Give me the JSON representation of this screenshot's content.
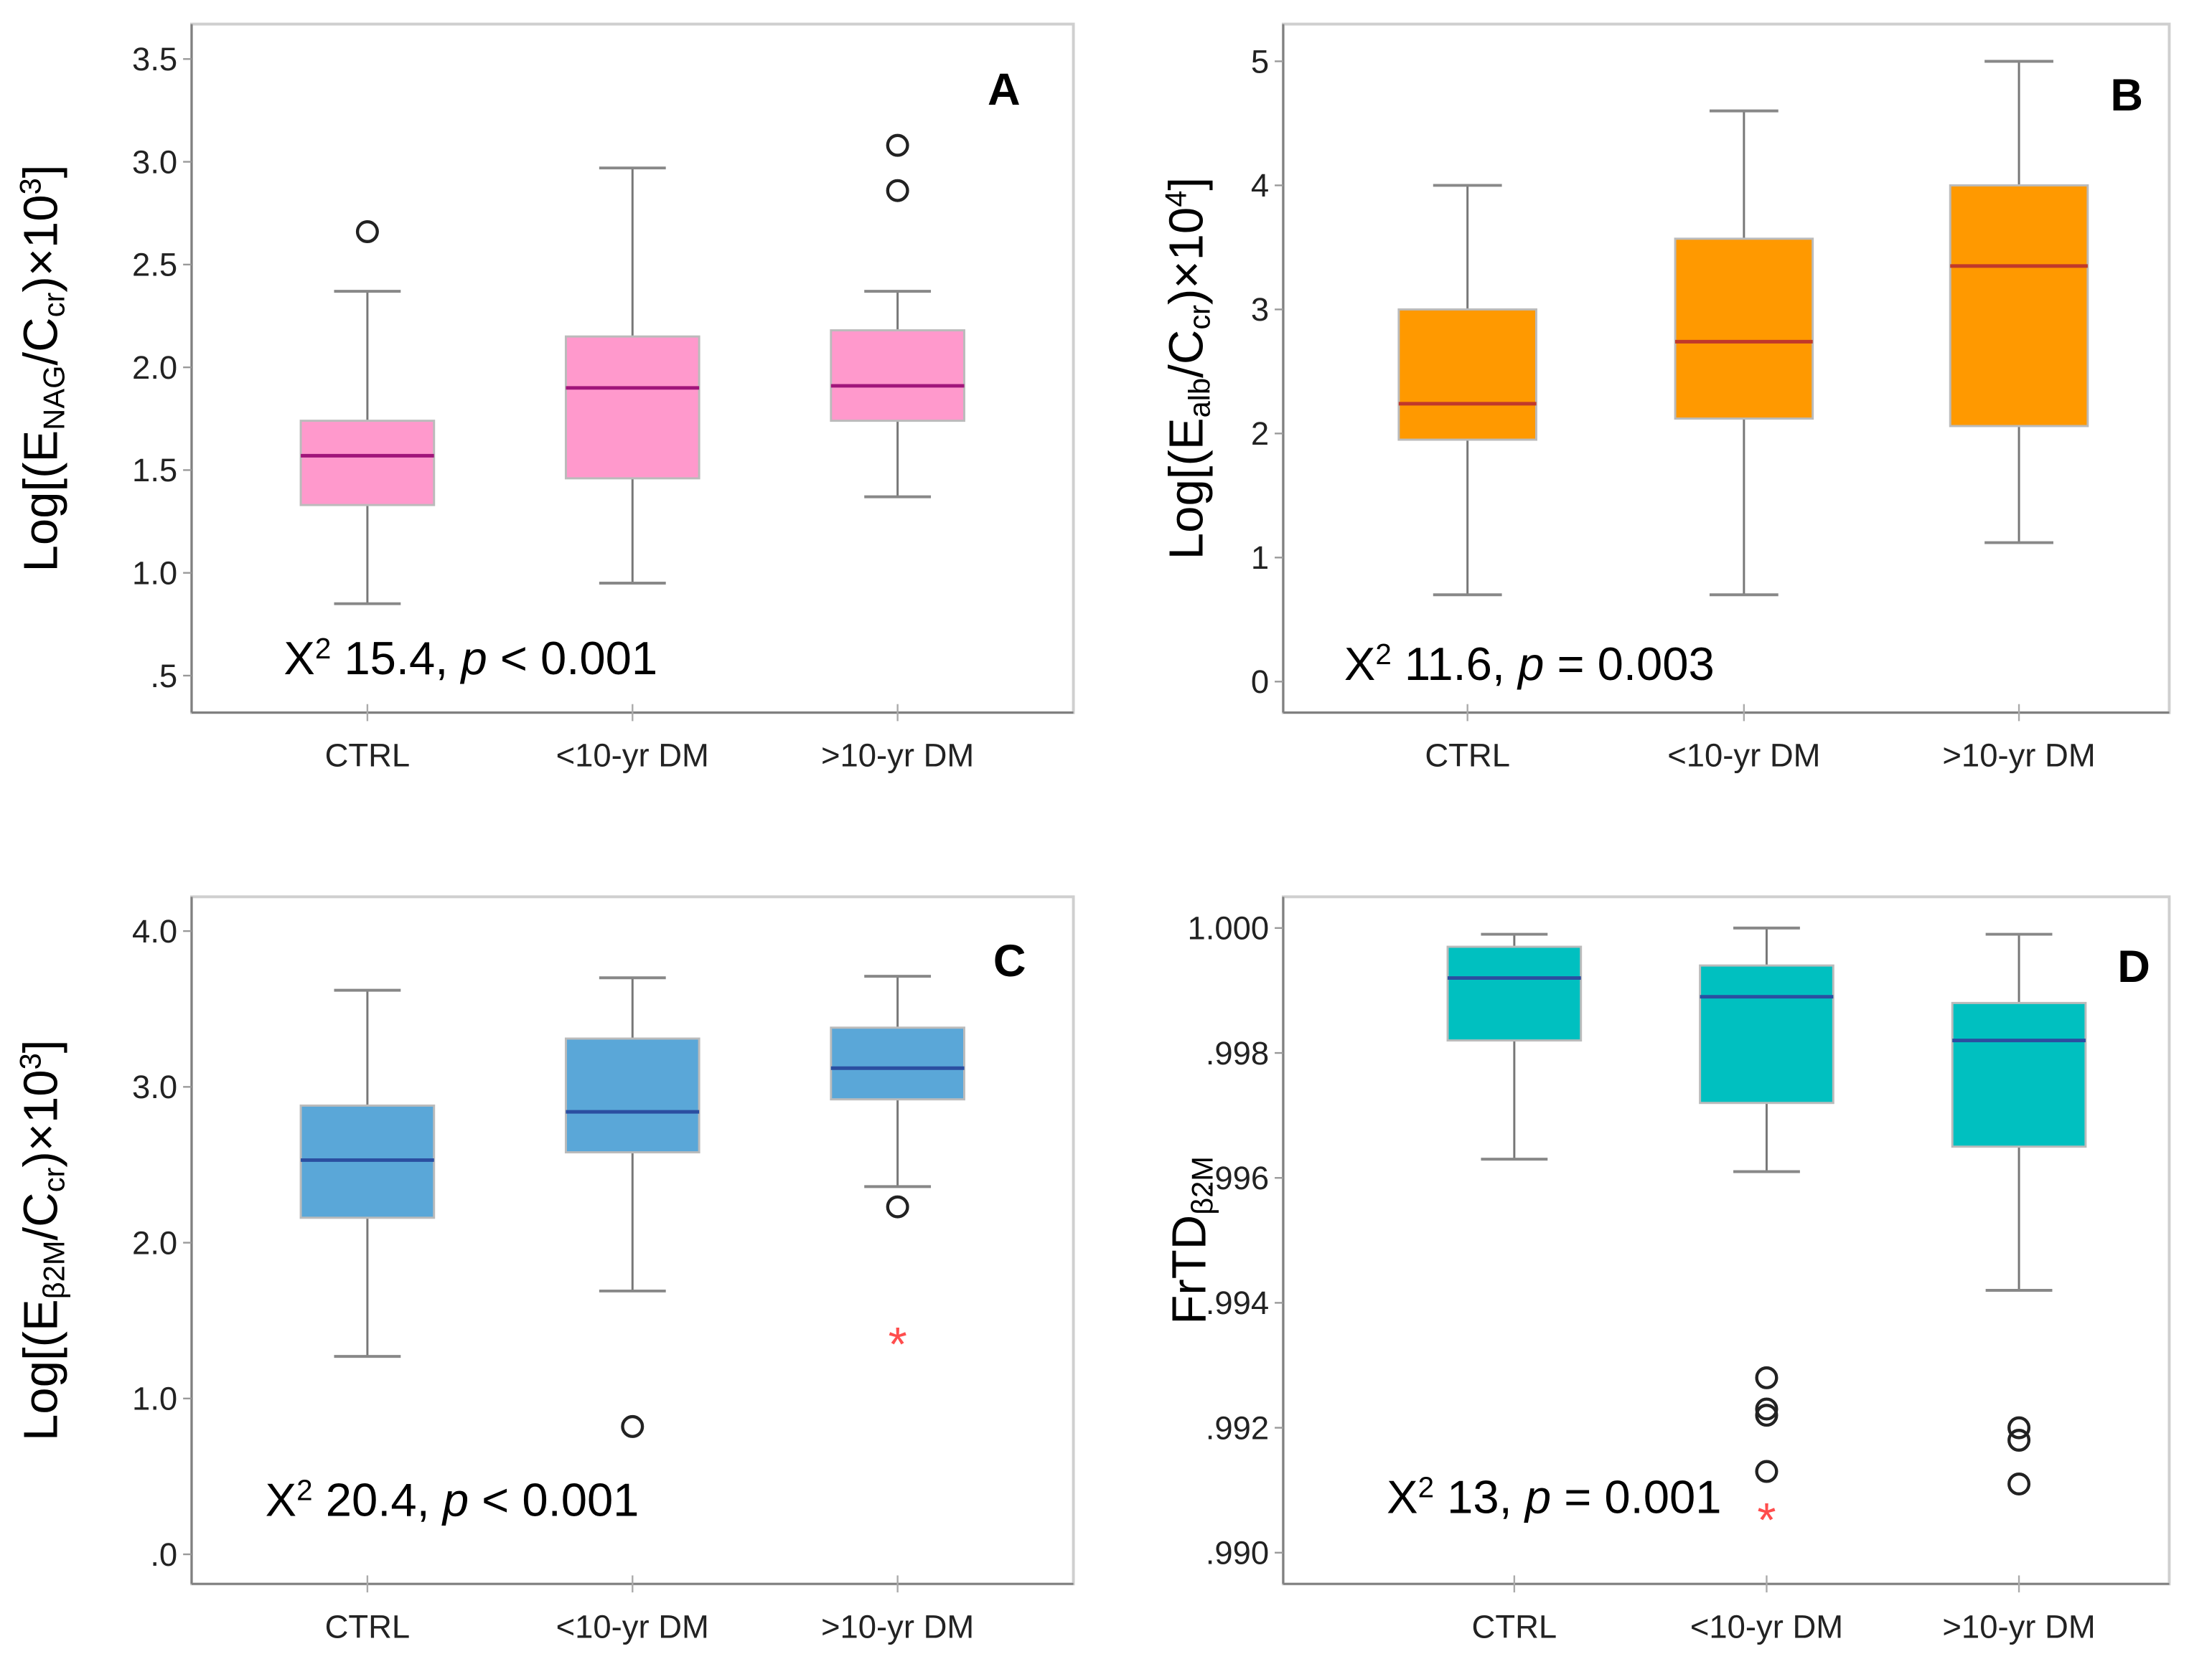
{
  "chart_data": [
    {
      "type": "box",
      "panel_label": "A",
      "categories": [
        "CTRL",
        "<10-yr DM",
        ">10-yr DM"
      ],
      "ylabel": [
        {
          "t": "Log[(E"
        },
        {
          "t": "NAG",
          "s": "sub"
        },
        {
          "t": "/C"
        },
        {
          "t": "cr",
          "s": "sub"
        },
        {
          "t": ")×10"
        },
        {
          "t": "3",
          "s": "sup"
        },
        {
          "t": "]"
        }
      ],
      "annotation": [
        {
          "t": "X"
        },
        {
          "t": "2",
          "s": "sup"
        },
        {
          "t": " 15.4, "
        },
        {
          "t": "p",
          "s": "i"
        },
        {
          "t": " < 0.001"
        }
      ],
      "ylim": [
        0.32,
        3.67
      ],
      "yticks": [
        0.5,
        1.0,
        1.5,
        2.0,
        2.5,
        3.0,
        3.5
      ],
      "ytick_labels": [
        ".5",
        "1.0",
        "1.5",
        "2.0",
        "2.5",
        "3.0",
        "3.5"
      ],
      "fill": "#ff99cc",
      "median_color": "#a0157a",
      "boxes": [
        {
          "min": 0.85,
          "q1": 1.33,
          "median": 1.57,
          "q3": 1.74,
          "max": 2.37,
          "outliers": [
            2.66
          ],
          "extremes": []
        },
        {
          "min": 0.95,
          "q1": 1.46,
          "median": 1.9,
          "q3": 2.15,
          "max": 2.97,
          "outliers": [],
          "extremes": []
        },
        {
          "min": 1.37,
          "q1": 1.74,
          "median": 1.91,
          "q3": 2.18,
          "max": 2.37,
          "outliers": [
            2.86,
            3.08
          ],
          "extremes": []
        }
      ]
    },
    {
      "type": "box",
      "panel_label": "B",
      "categories": [
        "CTRL",
        "<10-yr DM",
        ">10-yr DM"
      ],
      "ylabel": [
        {
          "t": "Log[(E"
        },
        {
          "t": "alb",
          "s": "sub"
        },
        {
          "t": "/C"
        },
        {
          "t": "cr",
          "s": "sub"
        },
        {
          "t": ")×10"
        },
        {
          "t": "4",
          "s": "sup"
        },
        {
          "t": "]"
        }
      ],
      "annotation": [
        {
          "t": "X"
        },
        {
          "t": "2",
          "s": "sup"
        },
        {
          "t": " 11.6, "
        },
        {
          "t": "p",
          "s": "i"
        },
        {
          "t": " = 0.003"
        }
      ],
      "ylim": [
        -0.25,
        5.3
      ],
      "yticks": [
        0,
        1,
        2,
        3,
        4,
        5
      ],
      "ytick_labels": [
        "0",
        "1",
        "2",
        "3",
        "4",
        "5"
      ],
      "fill": "#ff9900",
      "median_color": "#c0392b",
      "boxes": [
        {
          "min": 0.7,
          "q1": 1.95,
          "median": 2.24,
          "q3": 3.0,
          "max": 4.0,
          "outliers": [],
          "extremes": []
        },
        {
          "min": 0.7,
          "q1": 2.12,
          "median": 2.74,
          "q3": 3.57,
          "max": 4.6,
          "outliers": [],
          "extremes": []
        },
        {
          "min": 1.12,
          "q1": 2.06,
          "median": 3.35,
          "q3": 4.0,
          "max": 5.0,
          "outliers": [],
          "extremes": []
        }
      ]
    },
    {
      "type": "box",
      "panel_label": "C",
      "categories": [
        "CTRL",
        "<10-yr DM",
        ">10-yr DM"
      ],
      "ylabel": [
        {
          "t": "Log[(E"
        },
        {
          "t": "β2M",
          "s": "sub"
        },
        {
          "t": "/C"
        },
        {
          "t": "cr",
          "s": "sub"
        },
        {
          "t": ")×10"
        },
        {
          "t": "3",
          "s": "sup"
        },
        {
          "t": "]"
        }
      ],
      "annotation": [
        {
          "t": "X"
        },
        {
          "t": "2",
          "s": "sup"
        },
        {
          "t": " 20.4, "
        },
        {
          "t": "p",
          "s": "i"
        },
        {
          "t": " < 0.001"
        }
      ],
      "ylim": [
        -0.19,
        4.22
      ],
      "yticks": [
        0,
        1,
        2,
        3,
        4
      ],
      "ytick_labels": [
        ".0",
        "1.0",
        "2.0",
        "3.0",
        "4.0"
      ],
      "fill": "#5aa7d8",
      "median_color": "#2b4ea0",
      "boxes": [
        {
          "min": 1.27,
          "q1": 2.16,
          "median": 2.53,
          "q3": 2.88,
          "max": 3.62,
          "outliers": [],
          "extremes": []
        },
        {
          "min": 1.69,
          "q1": 2.58,
          "median": 2.84,
          "q3": 3.31,
          "max": 3.7,
          "outliers": [
            0.82
          ],
          "extremes": []
        },
        {
          "min": 2.36,
          "q1": 2.92,
          "median": 3.12,
          "q3": 3.38,
          "max": 3.71,
          "outliers": [
            2.23
          ],
          "extremes": [
            1.38
          ]
        }
      ]
    },
    {
      "type": "box",
      "panel_label": "D",
      "categories": [
        "CTRL",
        "<10-yr DM",
        ">10-yr DM"
      ],
      "ylabel": [
        {
          "t": "FrTD"
        },
        {
          "t": "β2M",
          "s": "sub"
        }
      ],
      "annotation": [
        {
          "t": "X"
        },
        {
          "t": "2",
          "s": "sup"
        },
        {
          "t": " 13, "
        },
        {
          "t": "p",
          "s": "i"
        },
        {
          "t": " = 0.001"
        }
      ],
      "ylim": [
        0.9895,
        1.0005
      ],
      "yticks": [
        0.99,
        0.992,
        0.994,
        0.996,
        0.998,
        1.0
      ],
      "ytick_labels": [
        ".990",
        ".992",
        ".994",
        ".996",
        ".998",
        "1.000"
      ],
      "fill": "#00c0c0",
      "median_color": "#2b4ea0",
      "boxes": [
        {
          "min": 0.9963,
          "q1": 0.9982,
          "median": 0.9992,
          "q3": 0.9997,
          "max": 0.9999,
          "outliers": [],
          "extremes": []
        },
        {
          "min": 0.9961,
          "q1": 0.9972,
          "median": 0.9989,
          "q3": 0.9994,
          "max": 1.0,
          "outliers": [
            0.9928,
            0.9923,
            0.9922,
            0.9913
          ],
          "extremes": [
            0.9906
          ]
        },
        {
          "min": 0.9942,
          "q1": 0.9965,
          "median": 0.9982,
          "q3": 0.9988,
          "max": 0.9999,
          "outliers": [
            0.992,
            0.9918,
            0.9911
          ],
          "extremes": []
        }
      ]
    }
  ]
}
